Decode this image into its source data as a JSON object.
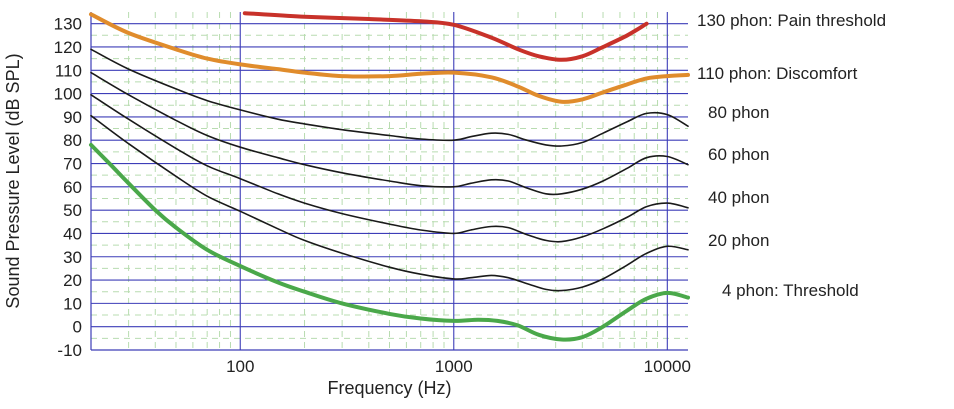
{
  "chart_data": {
    "type": "line",
    "title": "",
    "xlabel": "Frequency (Hz)",
    "ylabel": "Sound Pressure Level (dB SPL)",
    "x_scale": "log",
    "xlim": [
      20,
      12500
    ],
    "ylim": [
      -10,
      135
    ],
    "y_ticks": [
      -10,
      0,
      10,
      20,
      30,
      40,
      50,
      60,
      70,
      80,
      90,
      100,
      110,
      120,
      130
    ],
    "x_ticks": [
      100,
      1000,
      10000
    ],
    "x_tick_labels": [
      "100",
      "1000",
      "10000"
    ],
    "grid": true,
    "colors": {
      "grid_major": "#3d3db8",
      "grid_minor": "#b8dcb0",
      "pain": "#c8322a",
      "discomfort": "#e08c2c",
      "black_curves": "#1a1a1a",
      "threshold": "#4aa84a"
    },
    "series": [
      {
        "name": "130 phon: Pain threshold",
        "color": "#c8322a",
        "x": [
          105,
          200,
          400,
          700,
          1000,
          1500,
          2000,
          2500,
          3200,
          4000,
          5000,
          6500,
          8000
        ],
        "y": [
          134.5,
          133,
          132,
          131,
          129.5,
          124,
          119,
          116,
          114.5,
          116,
          120,
          125,
          130
        ]
      },
      {
        "name": "110 phon: Discomfort",
        "color": "#e08c2c",
        "x": [
          20,
          30,
          50,
          70,
          100,
          150,
          200,
          300,
          500,
          700,
          1000,
          1500,
          2000,
          2500,
          3200,
          4000,
          5000,
          6500,
          8000,
          10000,
          12500
        ],
        "y": [
          134,
          126,
          119,
          115,
          112.5,
          110.5,
          109,
          107.5,
          107.5,
          108.5,
          109,
          107,
          103,
          99,
          96.5,
          97.5,
          100.5,
          104,
          106.5,
          107.5,
          108
        ]
      },
      {
        "name": "80 phon",
        "color": "#1a1a1a",
        "x": [
          20,
          30,
          50,
          70,
          100,
          150,
          200,
          300,
          500,
          700,
          1000,
          1200,
          1500,
          1800,
          2200,
          2700,
          3200,
          4000,
          5000,
          6500,
          8000,
          10000,
          12500
        ],
        "y": [
          119,
          110.5,
          102,
          97,
          93,
          89,
          87,
          84.5,
          82,
          80.5,
          80,
          81.5,
          83,
          82.5,
          80,
          78,
          77.5,
          79,
          83,
          88,
          91.5,
          91,
          86
        ]
      },
      {
        "name": "60 phon",
        "color": "#1a1a1a",
        "x": [
          20,
          30,
          50,
          70,
          100,
          150,
          200,
          300,
          500,
          700,
          1000,
          1200,
          1500,
          1800,
          2200,
          2700,
          3200,
          4000,
          5000,
          6500,
          8000,
          10000,
          12500
        ],
        "y": [
          109,
          99.5,
          88.5,
          82,
          77,
          72.5,
          69.5,
          66,
          62.5,
          60.5,
          60,
          61.5,
          63,
          62.5,
          59.5,
          57,
          57,
          59,
          62.5,
          68,
          72.5,
          73,
          69.5
        ]
      },
      {
        "name": "40 phon",
        "color": "#1a1a1a",
        "x": [
          20,
          30,
          50,
          70,
          100,
          150,
          200,
          300,
          500,
          700,
          1000,
          1200,
          1500,
          1800,
          2200,
          2700,
          3200,
          4000,
          5000,
          6500,
          8000,
          10000,
          12500
        ],
        "y": [
          99.5,
          89,
          76.5,
          69,
          63.5,
          57,
          53,
          48.5,
          44,
          41.5,
          40,
          41.5,
          43,
          42.5,
          39.5,
          37,
          36.5,
          38.5,
          42,
          47,
          51.5,
          53,
          51
        ]
      },
      {
        "name": "20 phon",
        "color": "#1a1a1a",
        "x": [
          20,
          30,
          50,
          70,
          100,
          150,
          200,
          300,
          500,
          700,
          1000,
          1200,
          1500,
          1800,
          2200,
          2700,
          3200,
          4000,
          5000,
          6500,
          8000,
          10000,
          12500
        ],
        "y": [
          90.5,
          78.5,
          64.5,
          56,
          49.5,
          42,
          37,
          31.5,
          25.5,
          22.5,
          20.5,
          21,
          22,
          21,
          18.5,
          16,
          15.5,
          17,
          20.5,
          26.5,
          31.5,
          34.5,
          33
        ]
      },
      {
        "name": "4 phon: Threshold",
        "color": "#4aa84a",
        "x": [
          20,
          25,
          30,
          40,
          50,
          70,
          100,
          150,
          200,
          300,
          500,
          700,
          1000,
          1300,
          1600,
          2000,
          2500,
          3200,
          4000,
          5000,
          6500,
          8000,
          10000,
          12500
        ],
        "y": [
          78,
          69,
          61.5,
          50,
          42.5,
          33,
          26,
          19,
          15,
          10,
          5.5,
          3.5,
          2.5,
          3,
          2.5,
          0.5,
          -3.5,
          -5.5,
          -4.5,
          0,
          7,
          12,
          14.5,
          12.5
        ]
      }
    ],
    "labels": [
      {
        "text": "130 phon: Pain threshold",
        "series": 0
      },
      {
        "text": "110 phon: Discomfort",
        "series": 1
      },
      {
        "text": "80 phon",
        "series": 2
      },
      {
        "text": "60 phon",
        "series": 3
      },
      {
        "text": "40 phon",
        "series": 4
      },
      {
        "text": "20 phon",
        "series": 5
      },
      {
        "text": "4 phon: Threshold",
        "series": 6
      }
    ]
  }
}
